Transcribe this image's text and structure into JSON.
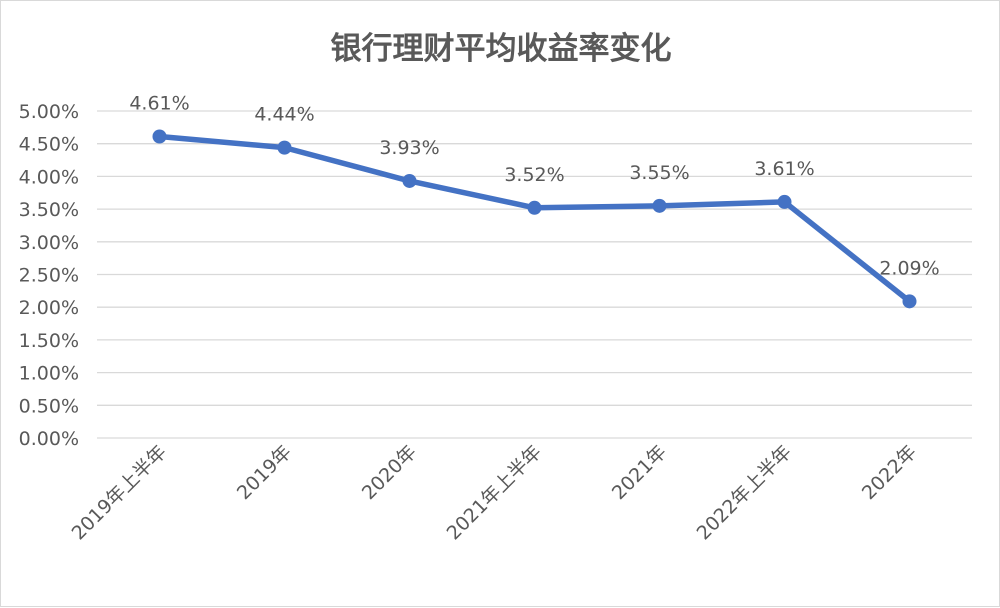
{
  "chart_data": {
    "type": "line",
    "title": "银行理财平均收益率变化",
    "categories": [
      "2019年上半年",
      "2019年",
      "2020年",
      "2021年上半年",
      "2021年",
      "2022年上半年",
      "2022年"
    ],
    "series": [
      {
        "values": [
          4.61,
          4.44,
          3.93,
          3.52,
          3.55,
          3.61,
          2.09
        ]
      }
    ],
    "data_labels": [
      "4.61%",
      "4.44%",
      "3.93%",
      "3.52%",
      "3.55%",
      "3.61%",
      "2.09%"
    ],
    "yticks": [
      "0.00%",
      "0.50%",
      "1.00%",
      "1.50%",
      "2.00%",
      "2.50%",
      "3.00%",
      "3.50%",
      "4.00%",
      "4.50%",
      "5.00%"
    ],
    "ylim": [
      0,
      5
    ],
    "xlabel": "",
    "ylabel": "",
    "grid": true,
    "legend": "none",
    "colors": {
      "line": "#4472C4",
      "grid": "#d9d9d9",
      "text": "#595959"
    }
  }
}
